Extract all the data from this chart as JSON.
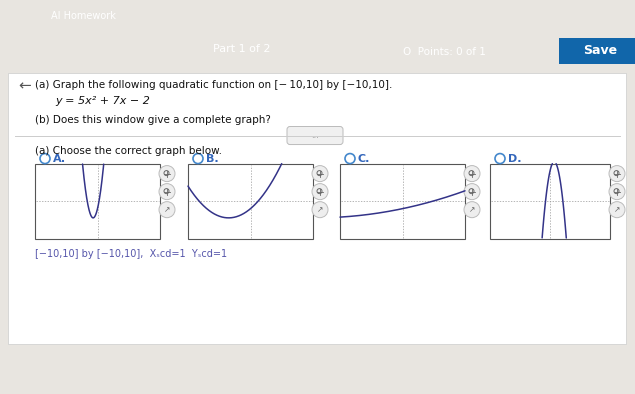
{
  "header_bg_top": "#444444",
  "header_bg_bottom": "#1a9fd4",
  "header_text": "Part 1 of 2",
  "points_text": "O  Points: 0 of 1",
  "save_text": "Save",
  "body_bg": "#e8e5e0",
  "question_a": "(a) Graph the following quadratic function on [− 10,10] by [−10,10].",
  "equation": "y = 5x² + 7x − 2",
  "question_b": "(b) Does this window give a complete graph?",
  "choose_text": "(a) Choose the correct graph below.",
  "options": [
    "A.",
    "B.",
    "C.",
    "D."
  ],
  "footer_text": "[−10,10] by [−10,10],  Xₛcd=1  Yₛcd=1",
  "graph_bg": "#f5f5f5",
  "graph_border": "#555555",
  "curve_color": "#333388",
  "radio_color": "#4488cc",
  "label_color": "#3366bb",
  "text_color": "#111111",
  "icon_color": "#aaaaaa",
  "save_bg": "#1166aa",
  "header_dark": "#3a3a3a",
  "divider_color": "#cccccc",
  "dots_color": "#999999"
}
